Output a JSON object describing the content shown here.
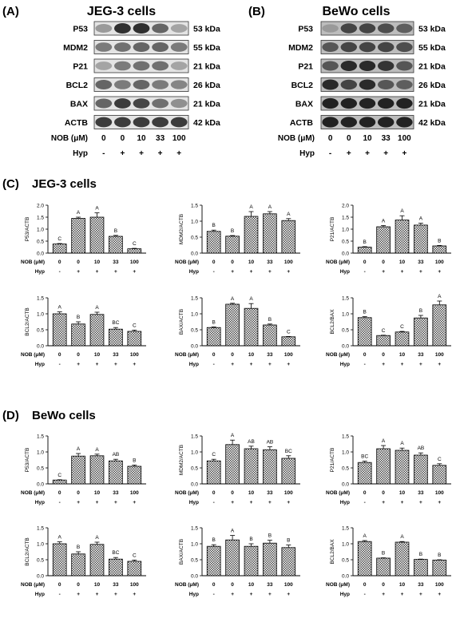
{
  "panels": {
    "A": {
      "label": "(A)",
      "title": "JEG-3 cells"
    },
    "B": {
      "label": "(B)",
      "title": "BeWo cells"
    },
    "C": {
      "label": "(C)",
      "title": "JEG-3 cells"
    },
    "D": {
      "label": "(D)",
      "title": "BeWo cells"
    }
  },
  "blots": {
    "A": {
      "rows": [
        {
          "protein": "P53",
          "kda": "53 kDa",
          "levels": [
            0.35,
            0.85,
            0.85,
            0.6,
            0.3
          ]
        },
        {
          "protein": "MDM2",
          "kda": "55 kDa",
          "levels": [
            0.5,
            0.55,
            0.6,
            0.6,
            0.5
          ]
        },
        {
          "protein": "P21",
          "kda": "21 kDa",
          "levels": [
            0.3,
            0.5,
            0.55,
            0.55,
            0.3
          ]
        },
        {
          "protein": "BCL2",
          "kda": "26 kDa",
          "levels": [
            0.6,
            0.5,
            0.6,
            0.5,
            0.45
          ]
        },
        {
          "protein": "BAX",
          "kda": "21 kDa",
          "levels": [
            0.6,
            0.8,
            0.75,
            0.55,
            0.4
          ]
        },
        {
          "protein": "ACTB",
          "kda": "42 kDa",
          "levels": [
            0.8,
            0.8,
            0.8,
            0.8,
            0.8
          ]
        }
      ],
      "nob_label": "NOB (μM)",
      "nob_values": [
        "0",
        "0",
        "10",
        "33",
        "100"
      ],
      "hyp_label": "Hyp",
      "hyp_values": [
        "-",
        "+",
        "+",
        "+",
        "+"
      ]
    },
    "B": {
      "rows": [
        {
          "protein": "P53",
          "kda": "53 kDa",
          "levels": [
            0.2,
            0.7,
            0.7,
            0.65,
            0.55
          ]
        },
        {
          "protein": "MDM2",
          "kda": "55 kDa",
          "levels": [
            0.6,
            0.7,
            0.7,
            0.7,
            0.65
          ]
        },
        {
          "protein": "P21",
          "kda": "21 kDa",
          "levels": [
            0.6,
            0.85,
            0.85,
            0.8,
            0.6
          ]
        },
        {
          "protein": "BCL2",
          "kda": "26 kDa",
          "levels": [
            0.85,
            0.7,
            0.85,
            0.6,
            0.55
          ]
        },
        {
          "protein": "BAX",
          "kda": "21 kDa",
          "levels": [
            0.9,
            0.9,
            0.9,
            0.9,
            0.9
          ]
        },
        {
          "protein": "ACTB",
          "kda": "42 kDa",
          "levels": [
            0.9,
            0.9,
            0.9,
            0.9,
            0.9
          ]
        }
      ],
      "nob_label": "NOB (μM)",
      "nob_values": [
        "0",
        "0",
        "10",
        "33",
        "100"
      ],
      "hyp_label": "Hyp",
      "hyp_values": [
        "-",
        "+",
        "+",
        "+",
        "+"
      ]
    }
  },
  "chart_axis_rows": {
    "nob_label": "NOB (μM)",
    "nob_values": [
      "0",
      "0",
      "10",
      "33",
      "100"
    ],
    "hyp_label": "Hyp",
    "hyp_values": [
      "-",
      "+",
      "+",
      "+",
      "+"
    ]
  },
  "chart_data": [
    {
      "panel": "C",
      "type": "bar",
      "ylabel": "P53/ACTB",
      "ylim": [
        0,
        2.0
      ],
      "ticks": [
        "0.0",
        "0.5",
        "1.0",
        "1.5",
        "2.0"
      ],
      "tick_values": [
        0,
        0.5,
        1.0,
        1.5,
        2.0
      ],
      "values": [
        0.38,
        1.45,
        1.5,
        0.7,
        0.18
      ],
      "errors": [
        0.02,
        0.05,
        0.18,
        0.04,
        0.02
      ],
      "letters": [
        "C",
        "A",
        "A",
        "B",
        "C"
      ]
    },
    {
      "panel": "C",
      "type": "bar",
      "ylabel": "MDM2/ACTB",
      "ylim": [
        0,
        1.5
      ],
      "ticks": [
        "0.0",
        "0.5",
        "1.0",
        "1.5"
      ],
      "tick_values": [
        0,
        0.5,
        1.0,
        1.5
      ],
      "values": [
        0.68,
        0.53,
        1.15,
        1.23,
        1.02
      ],
      "errors": [
        0.04,
        0.02,
        0.15,
        0.07,
        0.06
      ],
      "letters": [
        "B",
        "B",
        "A",
        "A",
        "A"
      ]
    },
    {
      "panel": "C",
      "type": "bar",
      "ylabel": "P21/ACTB",
      "ylim": [
        0,
        2.0
      ],
      "ticks": [
        "0.0",
        "0.5",
        "1.0",
        "1.5",
        "2.0"
      ],
      "tick_values": [
        0,
        0.5,
        1.0,
        1.5,
        2.0
      ],
      "values": [
        0.25,
        1.1,
        1.38,
        1.17,
        0.3
      ],
      "errors": [
        0.02,
        0.05,
        0.18,
        0.08,
        0.02
      ],
      "letters": [
        "B",
        "A",
        "A",
        "A",
        "B"
      ]
    },
    {
      "panel": "C",
      "type": "bar",
      "ylabel": "BCL2/ACTB",
      "ylim": [
        0,
        1.5
      ],
      "ticks": [
        "0.0",
        "0.5",
        "1.0",
        "1.5"
      ],
      "tick_values": [
        0,
        0.5,
        1.0,
        1.5
      ],
      "values": [
        1.0,
        0.68,
        0.98,
        0.52,
        0.45
      ],
      "errors": [
        0.06,
        0.07,
        0.07,
        0.05,
        0.04
      ],
      "letters": [
        "A",
        "B",
        "A",
        "BC",
        "C"
      ]
    },
    {
      "panel": "C",
      "type": "bar",
      "ylabel": "BAX/ACTB",
      "ylim": [
        0,
        1.5
      ],
      "ticks": [
        "0.0",
        "0.5",
        "1.0",
        "1.5"
      ],
      "tick_values": [
        0,
        0.5,
        1.0,
        1.5
      ],
      "values": [
        0.57,
        1.3,
        1.17,
        0.65,
        0.28
      ],
      "errors": [
        0.02,
        0.03,
        0.15,
        0.03,
        0.01
      ],
      "letters": [
        "B",
        "A",
        "A",
        "B",
        "C"
      ]
    },
    {
      "panel": "C",
      "type": "bar",
      "ylabel": "BCL2/BAX",
      "ylim": [
        0,
        1.5
      ],
      "ticks": [
        "0.0",
        "0.5",
        "1.0",
        "1.5"
      ],
      "tick_values": [
        0,
        0.5,
        1.0,
        1.5
      ],
      "values": [
        0.88,
        0.32,
        0.43,
        0.87,
        1.28
      ],
      "errors": [
        0.03,
        0.01,
        0.02,
        0.08,
        0.12
      ],
      "letters": [
        "B",
        "C",
        "C",
        "B",
        "A"
      ]
    },
    {
      "panel": "D",
      "type": "bar",
      "ylabel": "P53/ACTB",
      "ylim": [
        0,
        1.5
      ],
      "ticks": [
        "0.0",
        "0.5",
        "1.0",
        "1.5"
      ],
      "tick_values": [
        0,
        0.5,
        1.0,
        1.5
      ],
      "values": [
        0.12,
        0.87,
        0.88,
        0.72,
        0.55
      ],
      "errors": [
        0.01,
        0.08,
        0.05,
        0.05,
        0.04
      ],
      "letters": [
        "C",
        "A",
        "A",
        "AB",
        "B"
      ]
    },
    {
      "panel": "D",
      "type": "bar",
      "ylabel": "MDM2/ACTB",
      "ylim": [
        0,
        1.5
      ],
      "ticks": [
        "0.0",
        "0.5",
        "1.0",
        "1.5"
      ],
      "tick_values": [
        0,
        0.5,
        1.0,
        1.5
      ],
      "values": [
        0.72,
        1.23,
        1.1,
        1.07,
        0.8
      ],
      "errors": [
        0.05,
        0.14,
        0.08,
        0.09,
        0.08
      ],
      "letters": [
        "C",
        "A",
        "AB",
        "AB",
        "BC"
      ]
    },
    {
      "panel": "D",
      "type": "bar",
      "ylabel": "P21/ACTB",
      "ylim": [
        0,
        1.5
      ],
      "ticks": [
        "0.0",
        "0.5",
        "1.0",
        "1.5"
      ],
      "tick_values": [
        0,
        0.5,
        1.0,
        1.5
      ],
      "values": [
        0.67,
        1.1,
        1.05,
        0.9,
        0.58
      ],
      "errors": [
        0.04,
        0.1,
        0.07,
        0.07,
        0.05
      ],
      "letters": [
        "BC",
        "A",
        "A",
        "AB",
        "C"
      ]
    },
    {
      "panel": "D",
      "type": "bar",
      "ylabel": "BCL2/ACTB",
      "ylim": [
        0,
        1.5
      ],
      "ticks": [
        "0.0",
        "0.5",
        "1.0",
        "1.5"
      ],
      "tick_values": [
        0,
        0.5,
        1.0,
        1.5
      ],
      "values": [
        1.0,
        0.68,
        0.98,
        0.52,
        0.45
      ],
      "errors": [
        0.06,
        0.07,
        0.07,
        0.05,
        0.04
      ],
      "letters": [
        "A",
        "B",
        "A",
        "BC",
        "C"
      ]
    },
    {
      "panel": "D",
      "type": "bar",
      "ylabel": "BAX/ACTB",
      "ylim": [
        0,
        1.5
      ],
      "ticks": [
        "0.0",
        "0.5",
        "1.0",
        "1.5"
      ],
      "tick_values": [
        0,
        0.5,
        1.0,
        1.5
      ],
      "values": [
        0.92,
        1.12,
        0.92,
        1.02,
        0.88
      ],
      "errors": [
        0.05,
        0.14,
        0.08,
        0.09,
        0.08
      ],
      "letters": [
        "B",
        "A",
        "B",
        "B",
        "B"
      ]
    },
    {
      "panel": "D",
      "type": "bar",
      "ylabel": "BCL2/BAX",
      "ylim": [
        0,
        1.5
      ],
      "ticks": [
        "0.0",
        "0.5",
        "1.0",
        "1.5"
      ],
      "tick_values": [
        0,
        0.5,
        1.0,
        1.5
      ],
      "values": [
        1.07,
        0.55,
        1.05,
        0.51,
        0.49
      ],
      "errors": [
        0.03,
        0.01,
        0.02,
        0.01,
        0.01
      ],
      "letters": [
        "A",
        "B",
        "A",
        "B",
        "B"
      ]
    }
  ]
}
